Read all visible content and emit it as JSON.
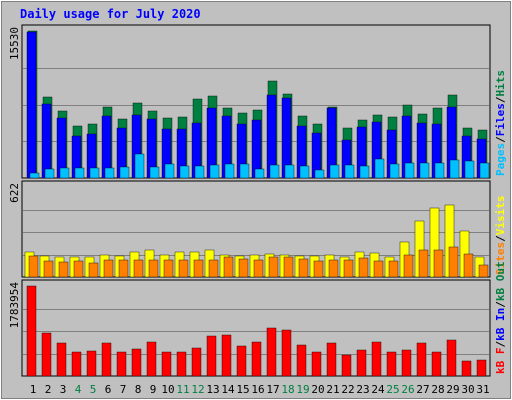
{
  "title": "Daily usage for July 2020",
  "colors": {
    "hits": "#008040",
    "files": "#0000ff",
    "pages": "#00c0ff",
    "visits": "#ffff00",
    "sites": "#ff8000",
    "kbin": "#008040",
    "kbout": "#ff0000",
    "panel": "#c0c0c0",
    "grid": "#808080",
    "axis_label": "#008040"
  },
  "chart_data": [
    {
      "type": "bar",
      "panel": "hits-files-pages",
      "ymax_label": "15530",
      "ylim": [
        0,
        15530
      ],
      "legend": [
        {
          "name": "Pages",
          "color": "#00c0ff"
        },
        {
          "name": "/",
          "color": "#000000"
        },
        {
          "name": "Files",
          "color": "#0000ff"
        },
        {
          "name": "/",
          "color": "#000000"
        },
        {
          "name": "Hits",
          "color": "#008040"
        }
      ],
      "series": [
        {
          "name": "Hits",
          "color": "#008040",
          "values": [
            15530,
            8600,
            7100,
            5500,
            5700,
            7500,
            6200,
            7900,
            7100,
            6300,
            6400,
            8300,
            8700,
            7400,
            6900,
            7200,
            10200,
            8900,
            6500,
            5700,
            7500,
            5300,
            6100,
            6700,
            6400,
            7700,
            6800,
            7400,
            8800,
            5300,
            5100
          ]
        },
        {
          "name": "Files",
          "color": "#0000ff",
          "values": [
            15400,
            7800,
            6300,
            4400,
            4700,
            6500,
            5300,
            6700,
            6200,
            5200,
            5200,
            5800,
            7400,
            6500,
            5700,
            6100,
            8800,
            8500,
            5500,
            4800,
            7400,
            4000,
            5400,
            5900,
            5100,
            6500,
            5800,
            5700,
            7500,
            4400,
            4100
          ]
        },
        {
          "name": "Pages",
          "color": "#00c0ff",
          "values": [
            500,
            1000,
            1100,
            1050,
            1100,
            1100,
            1150,
            2500,
            1200,
            1500,
            1300,
            1300,
            1350,
            1450,
            1500,
            950,
            1400,
            1400,
            1250,
            850,
            1400,
            1350,
            1300,
            2050,
            1500,
            1600,
            1600,
            1550,
            1950,
            1750,
            1550
          ]
        }
      ]
    },
    {
      "type": "bar",
      "panel": "visits-sites",
      "ymax_label": "622",
      "ylim": [
        0,
        622
      ],
      "legend": [
        {
          "name": "Sites",
          "color": "#ff8000"
        },
        {
          "name": "/",
          "color": "#000000"
        },
        {
          "name": "Visits",
          "color": "#ffff00"
        }
      ],
      "series": [
        {
          "name": "Visits",
          "color": "#ffff00",
          "values": [
            175,
            145,
            140,
            140,
            135,
            155,
            145,
            170,
            185,
            150,
            170,
            175,
            185,
            150,
            145,
            150,
            160,
            150,
            145,
            145,
            150,
            140,
            170,
            165,
            140,
            240,
            390,
            480,
            500,
            320,
            135
          ]
        },
        {
          "name": "Sites",
          "color": "#ff8000",
          "values": [
            145,
            110,
            105,
            110,
            100,
            120,
            115,
            115,
            120,
            120,
            115,
            120,
            120,
            135,
            125,
            115,
            135,
            135,
            125,
            110,
            115,
            120,
            130,
            110,
            110,
            155,
            185,
            190,
            210,
            160,
            85
          ]
        }
      ]
    },
    {
      "type": "bar",
      "panel": "kb-in-out",
      "ymax_label": "1783954",
      "ylim": [
        0,
        1783954
      ],
      "legend": [
        {
          "name": "kB F",
          "color": "#ff0000"
        },
        {
          "name": "/",
          "color": "#000000"
        },
        {
          "name": "kB In",
          "color": "#0000ff"
        },
        {
          "name": "/",
          "color": "#000000"
        },
        {
          "name": "kB Out",
          "color": "#008040"
        }
      ],
      "series": [
        {
          "name": "kB F",
          "color": "#ff0000",
          "values": [
            1783954,
            860000,
            660000,
            470000,
            490000,
            660000,
            480000,
            530000,
            670000,
            470000,
            480000,
            560000,
            800000,
            820000,
            600000,
            670000,
            960000,
            920000,
            620000,
            470000,
            660000,
            420000,
            510000,
            680000,
            480000,
            520000,
            660000,
            480000,
            720000,
            300000,
            310000
          ]
        }
      ]
    }
  ],
  "x_labels": [
    {
      "day": "1",
      "color": "#000000"
    },
    {
      "day": "2",
      "color": "#000000"
    },
    {
      "day": "3",
      "color": "#000000"
    },
    {
      "day": "4",
      "color": "#008040"
    },
    {
      "day": "5",
      "color": "#008040"
    },
    {
      "day": "6",
      "color": "#000000"
    },
    {
      "day": "7",
      "color": "#000000"
    },
    {
      "day": "8",
      "color": "#000000"
    },
    {
      "day": "9",
      "color": "#000000"
    },
    {
      "day": "10",
      "color": "#000000"
    },
    {
      "day": "11",
      "color": "#008040"
    },
    {
      "day": "12",
      "color": "#008040"
    },
    {
      "day": "13",
      "color": "#000000"
    },
    {
      "day": "14",
      "color": "#000000"
    },
    {
      "day": "15",
      "color": "#000000"
    },
    {
      "day": "16",
      "color": "#000000"
    },
    {
      "day": "17",
      "color": "#000000"
    },
    {
      "day": "18",
      "color": "#008040"
    },
    {
      "day": "19",
      "color": "#008040"
    },
    {
      "day": "20",
      "color": "#000000"
    },
    {
      "day": "21",
      "color": "#000000"
    },
    {
      "day": "22",
      "color": "#000000"
    },
    {
      "day": "23",
      "color": "#000000"
    },
    {
      "day": "24",
      "color": "#000000"
    },
    {
      "day": "25",
      "color": "#008040"
    },
    {
      "day": "26",
      "color": "#008040"
    },
    {
      "day": "27",
      "color": "#000000"
    },
    {
      "day": "28",
      "color": "#000000"
    },
    {
      "day": "29",
      "color": "#000000"
    },
    {
      "day": "30",
      "color": "#000000"
    },
    {
      "day": "31",
      "color": "#000000"
    }
  ]
}
